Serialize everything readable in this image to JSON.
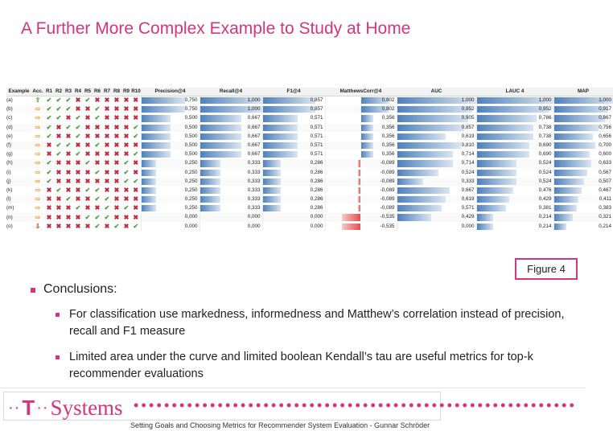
{
  "slide": {
    "title": "A Further More Complex Example to Study at Home",
    "figure_label": "Figure 4",
    "footer_text": "Setting Goals and Choosing Metrics for Recommender System Evaluation - Gunnar Schröder"
  },
  "logo": {
    "mark": "T",
    "dots": "··",
    "brand": "Systems"
  },
  "dotline": "••••••••••••••••••••••••••••••••••••••••••••••••••••••••••",
  "colors": {
    "accent": "#d4367c",
    "check": "#4a9d3a",
    "cross": "#c3273a",
    "bar_positive": "#4f81bd",
    "bar_negative": "#e25050"
  },
  "bullets": {
    "conclusions": "Conclusions:",
    "items": [
      "For classification use markedness, informedness and Matthew’s correlation instead of precision, recall and F1 measure",
      "Limited area under the curve and limited boolean Kendall’s tau are useful metrics for top-k recommender evaluations"
    ]
  },
  "table": {
    "headers": [
      "Example",
      "Acc.",
      "R1",
      "R2",
      "R3",
      "R4",
      "R5",
      "R6",
      "R7",
      "R8",
      "R9",
      "R10",
      "Precision@4",
      "Recall@4",
      "F1@4",
      "MatthewsCorr@4",
      "AUC",
      "LAUC 4",
      "MAP"
    ],
    "metric_ranges": {
      "Precision@4": [
        0,
        1
      ],
      "Recall@4": [
        0,
        1
      ],
      "F1@4": [
        0,
        1
      ],
      "MatthewsCorr@4": [
        -1,
        1
      ],
      "AUC": [
        0,
        1
      ],
      "LAUC 4": [
        0,
        1
      ],
      "MAP": [
        0,
        1
      ]
    },
    "rows": [
      {
        "example": "(a)",
        "acc": "up",
        "rel": "+++x+xxxxx",
        "metrics": [
          0.75,
          1.0,
          0.857,
          0.802,
          1.0,
          1.0,
          1.0
        ]
      },
      {
        "example": "(b)",
        "acc": "right",
        "rel": "+++xx+xxxx",
        "metrics": [
          0.75,
          1.0,
          0.857,
          0.802,
          0.952,
          0.952,
          0.917
        ]
      },
      {
        "example": "(c)",
        "acc": "right",
        "rel": "++x+x+xxxx",
        "metrics": [
          0.5,
          0.667,
          0.571,
          0.356,
          0.905,
          0.786,
          0.867
        ]
      },
      {
        "example": "(d)",
        "acc": "right",
        "rel": "+x++xxxxx+",
        "metrics": [
          0.5,
          0.667,
          0.571,
          0.356,
          0.857,
          0.738,
          0.756
        ]
      },
      {
        "example": "(e)",
        "acc": "right",
        "rel": "+xx+xxxxx+",
        "metrics": [
          0.5,
          0.667,
          0.571,
          0.356,
          0.619,
          0.738,
          0.656
        ]
      },
      {
        "example": "(f)",
        "acc": "right",
        "rel": "x++xx+xxxx",
        "metrics": [
          0.5,
          0.667,
          0.571,
          0.356,
          0.81,
          0.69,
          0.7
        ]
      },
      {
        "example": "(g)",
        "acc": "right",
        "rel": "x+x+xxxxx+",
        "metrics": [
          0.5,
          0.667,
          0.571,
          0.356,
          0.714,
          0.69,
          0.6
        ]
      },
      {
        "example": "(h)",
        "acc": "right",
        "rel": "+xxx+xxx+x",
        "metrics": [
          0.25,
          0.333,
          0.286,
          -0.089,
          0.714,
          0.524,
          0.633
        ]
      },
      {
        "example": "(i)",
        "acc": "right",
        "rel": "+xxxx+xx+x",
        "metrics": [
          0.25,
          0.333,
          0.286,
          -0.089,
          0.524,
          0.524,
          0.567
        ]
      },
      {
        "example": "(j)",
        "acc": "right",
        "rel": "+xxxxxxx++",
        "metrics": [
          0.25,
          0.333,
          0.286,
          -0.089,
          0.333,
          0.524,
          0.507
        ]
      },
      {
        "example": "(k)",
        "acc": "right",
        "rel": "x+xx++xxxx",
        "metrics": [
          0.25,
          0.333,
          0.286,
          -0.089,
          0.667,
          0.476,
          0.467
        ]
      },
      {
        "example": "(l)",
        "acc": "right",
        "rel": "xx+xx++xxx",
        "metrics": [
          0.25,
          0.333,
          0.286,
          -0.089,
          0.619,
          0.429,
          0.411
        ]
      },
      {
        "example": "(m)",
        "acc": "right",
        "rel": "xxx+xx+x+x",
        "metrics": [
          0.25,
          0.333,
          0.286,
          -0.089,
          0.571,
          0.381,
          0.383
        ]
      },
      {
        "example": "(n)",
        "acc": "right",
        "rel": "xxxx+++xxx",
        "metrics": [
          0.0,
          0.0,
          0.0,
          -0.535,
          0.429,
          0.214,
          0.321
        ]
      },
      {
        "example": "(o)",
        "acc": "down",
        "rel": "xxxxx+x+x+",
        "metrics": [
          0.0,
          0.0,
          0.0,
          -0.535,
          0.0,
          0.214,
          0.214
        ]
      }
    ]
  }
}
